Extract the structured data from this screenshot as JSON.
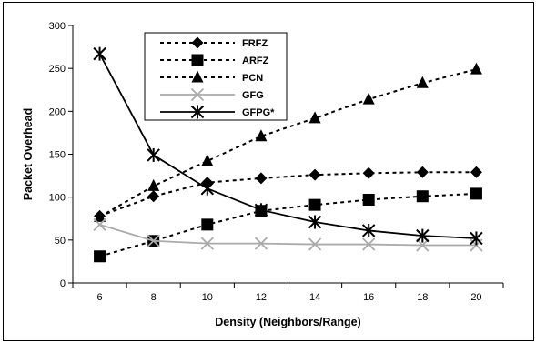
{
  "chart_data": {
    "type": "line",
    "title": "",
    "xlabel": "Density (Neighbors/Range)",
    "ylabel": "Packet Overhead",
    "x": [
      6,
      8,
      10,
      12,
      14,
      16,
      18,
      20
    ],
    "xlim": [
      5,
      21
    ],
    "ylim": [
      0,
      300
    ],
    "yticks": [
      0,
      50,
      100,
      150,
      200,
      250,
      300
    ],
    "grid": false,
    "legend": "top-left-center",
    "series": [
      {
        "name": "FRFZ",
        "values": [
          78,
          101,
          117,
          122,
          126,
          128,
          129,
          129
        ],
        "color": "#000000",
        "dash": true,
        "marker": "diamond"
      },
      {
        "name": "ARFZ",
        "values": [
          31,
          49,
          68,
          84,
          91,
          97,
          101,
          104
        ],
        "color": "#000000",
        "dash": true,
        "marker": "square"
      },
      {
        "name": "PCN",
        "values": [
          77,
          113,
          142,
          171,
          192,
          214,
          233,
          249
        ],
        "color": "#000000",
        "dash": true,
        "marker": "triangle"
      },
      {
        "name": "GFG",
        "values": [
          68,
          49,
          46,
          46,
          45,
          45,
          44,
          44
        ],
        "color": "#aaaaaa",
        "dash": false,
        "marker": "x"
      },
      {
        "name": "GFPG*",
        "values": [
          267,
          149,
          110,
          85,
          71,
          61,
          55,
          52
        ],
        "color": "#000000",
        "dash": false,
        "marker": "star"
      }
    ]
  }
}
